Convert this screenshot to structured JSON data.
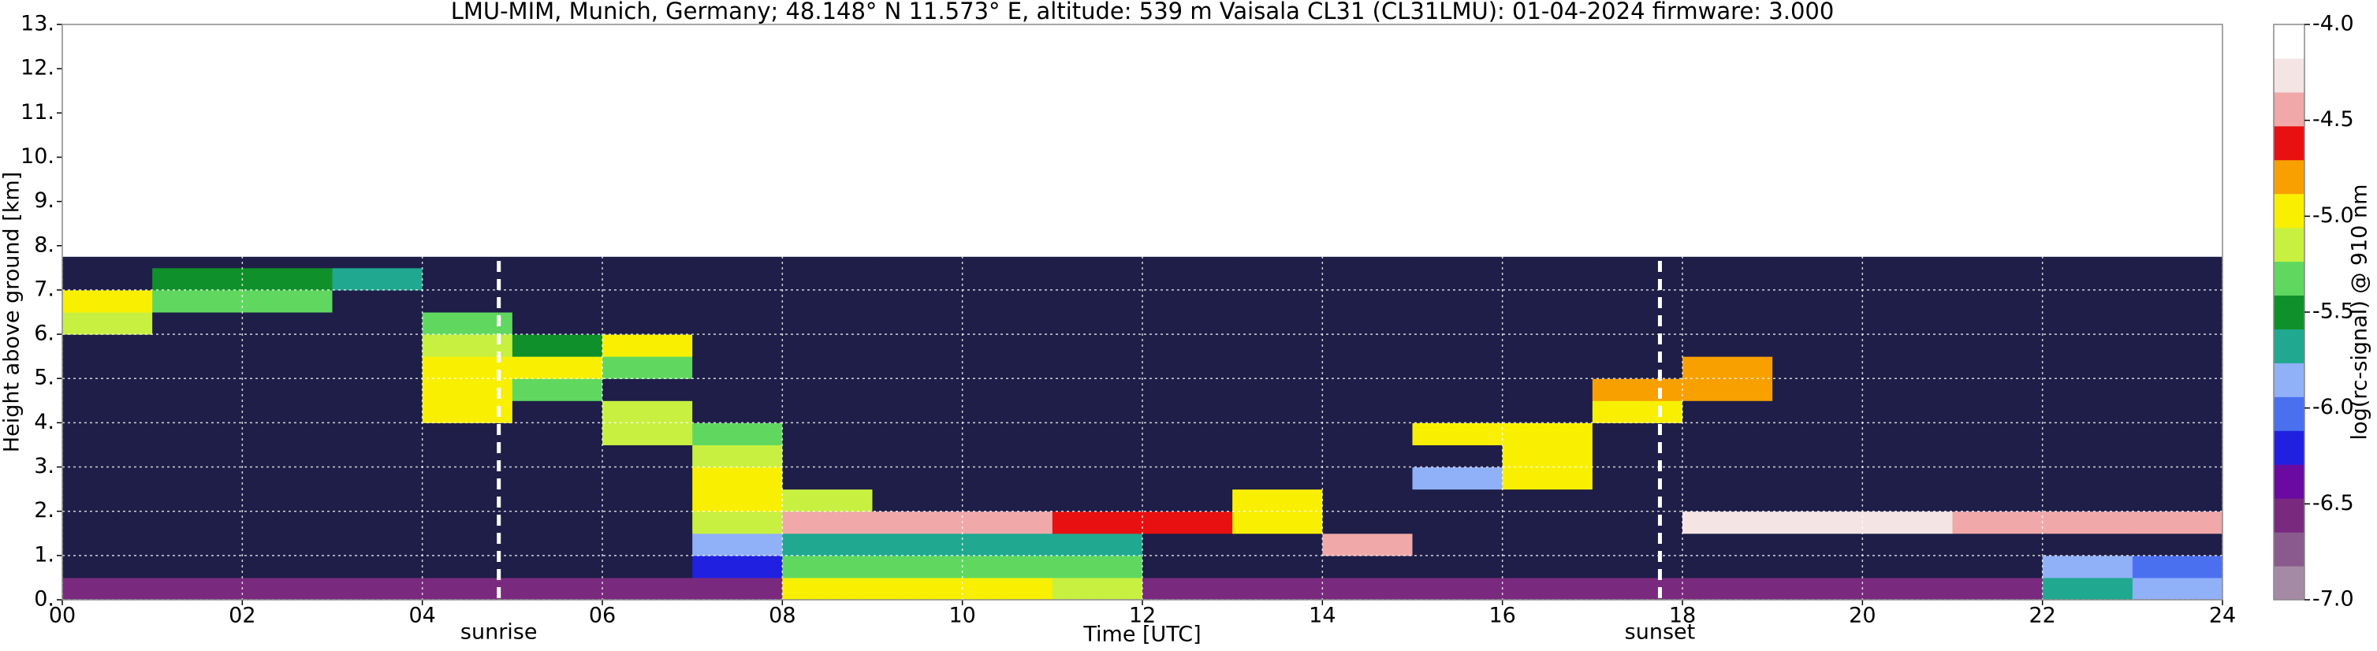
{
  "chart_data": {
    "type": "heatmap",
    "title": "LMU-MIM, Munich, Germany; 48.148° N 11.573° E, altitude: 539 m    Vaisala CL31 (CL31LMU): 01-04-2024    firmware: 3.000",
    "xlabel": "Time [UTC]",
    "ylabel": "Height above ground [km]",
    "colorbar_label": "log(rc-signal) @ 910 nm",
    "xlim": [
      0,
      24
    ],
    "ylim": [
      0,
      13
    ],
    "xticks": [
      {
        "value": 0,
        "label": "00"
      },
      {
        "value": 2,
        "label": "02"
      },
      {
        "value": 4,
        "label": "04"
      },
      {
        "value": 6,
        "label": "06"
      },
      {
        "value": 8,
        "label": "08"
      },
      {
        "value": 10,
        "label": "10"
      },
      {
        "value": 12,
        "label": "12"
      },
      {
        "value": 14,
        "label": "14"
      },
      {
        "value": 16,
        "label": "16"
      },
      {
        "value": 18,
        "label": "18"
      },
      {
        "value": 20,
        "label": "20"
      },
      {
        "value": 22,
        "label": "22"
      },
      {
        "value": 24,
        "label": "24"
      }
    ],
    "yticks": [
      {
        "value": 0,
        "label": "0."
      },
      {
        "value": 1,
        "label": "1."
      },
      {
        "value": 2,
        "label": "2."
      },
      {
        "value": 3,
        "label": "3."
      },
      {
        "value": 4,
        "label": "4."
      },
      {
        "value": 5,
        "label": "5."
      },
      {
        "value": 6,
        "label": "6."
      },
      {
        "value": 7,
        "label": "7."
      },
      {
        "value": 8,
        "label": "8."
      },
      {
        "value": 9,
        "label": "9."
      },
      {
        "value": 10,
        "label": "10."
      },
      {
        "value": 11,
        "label": "11."
      },
      {
        "value": 12,
        "label": "12."
      },
      {
        "value": 13,
        "label": "13."
      }
    ],
    "clim": [
      -7,
      -4
    ],
    "cticks": [
      {
        "value": -4,
        "label": "-4.0"
      },
      -4.5,
      {
        "value": -5,
        "label": "-5.0"
      },
      -5.5,
      {
        "value": -6,
        "label": "-6.0"
      },
      -6.5,
      {
        "value": -7,
        "label": "-7.0"
      }
    ],
    "colormap": [
      "#a58aa5",
      "#8a5a8e",
      "#7a2a7e",
      "#6a0aa0",
      "#2020e0",
      "#4a70f0",
      "#90b0f8",
      "#20a890",
      "#10902a",
      "#60d860",
      "#c8f040",
      "#f8f000",
      "#f8a000",
      "#e81010",
      "#f0a8a8",
      "#f4e4e4",
      "#ffffff"
    ],
    "under_color": "#1e1e48",
    "grid": true,
    "x_edges": [
      0,
      1,
      2,
      3,
      4,
      5,
      6,
      7,
      8,
      9,
      10,
      11,
      12,
      13,
      14,
      15,
      16,
      17,
      18,
      19,
      20,
      21,
      22,
      23,
      24
    ],
    "y_edges": [
      0,
      0.5,
      1,
      1.5,
      2,
      2.5,
      3,
      3.5,
      4,
      4.5,
      5,
      5.5,
      6,
      6.5,
      7,
      7.5,
      7.75
    ],
    "z": [
      [
        -6.6,
        -6.6,
        -6.6,
        -6.6,
        -6.6,
        -6.6,
        -6.6,
        -6.6,
        -5.0,
        -4.9,
        -5.0,
        -5.2,
        -6.6,
        -6.6,
        -6.6,
        -6.6,
        -6.6,
        -6.6,
        -6.6,
        -6.6,
        -6.6,
        -6.5,
        -5.6,
        -5.8
      ],
      [
        -7.3,
        -7.3,
        -7.3,
        -7.3,
        -7.3,
        -7.3,
        -7.3,
        -6.2,
        -5.3,
        -5.3,
        -5.3,
        -5.4,
        -7.3,
        -7.3,
        -7.3,
        -7.3,
        -7.3,
        -7.3,
        -7.3,
        -7.3,
        -7.3,
        -7.3,
        -5.8,
        -6.0
      ],
      [
        -7.4,
        -7.4,
        -7.4,
        -7.4,
        -7.4,
        -7.4,
        -7.4,
        -5.8,
        -5.6,
        -5.6,
        -5.6,
        -5.6,
        -7.4,
        -7.4,
        -4.4,
        -7.4,
        -7.4,
        -7.4,
        -7.4,
        -7.4,
        -7.4,
        -7.4,
        -7.4,
        -7.4
      ],
      [
        -7.4,
        -7.4,
        -7.4,
        -7.4,
        -7.4,
        -7.4,
        -7.4,
        -5.2,
        -4.5,
        -4.5,
        -4.5,
        -4.6,
        -4.6,
        -5.0,
        -7.4,
        -7.4,
        -7.4,
        -7.4,
        -4.3,
        -4.3,
        -4.3,
        -4.4,
        -4.4,
        -4.5
      ],
      [
        -7.4,
        -7.4,
        -7.4,
        -7.4,
        -7.4,
        -7.4,
        -7.4,
        -5.0,
        -5.2,
        -7.4,
        -7.4,
        -7.4,
        -7.4,
        -5.0,
        -7.4,
        -7.4,
        -7.4,
        -7.4,
        -7.4,
        -7.4,
        -7.4,
        -7.4,
        -7.4,
        -7.4
      ],
      [
        -7.4,
        -7.4,
        -7.4,
        -7.4,
        -7.4,
        -7.4,
        -7.4,
        -5.0,
        -7.4,
        -7.4,
        -7.4,
        -7.4,
        -7.4,
        -7.4,
        -7.4,
        -5.8,
        -5.0,
        -7.4,
        -7.4,
        -7.4,
        -7.4,
        -7.4,
        -7.4,
        -7.4
      ],
      [
        -7.4,
        -7.4,
        -7.4,
        -7.4,
        -7.4,
        -7.4,
        -7.4,
        -5.2,
        -7.4,
        -7.4,
        -7.4,
        -7.4,
        -7.4,
        -7.4,
        -7.4,
        -7.4,
        -4.9,
        -7.4,
        -7.4,
        -7.4,
        -7.4,
        -7.4,
        -7.4,
        -7.4
      ],
      [
        -7.4,
        -7.4,
        -7.4,
        -7.4,
        -7.4,
        -7.4,
        -5.2,
        -5.4,
        -7.4,
        -7.4,
        -7.4,
        -7.4,
        -7.4,
        -7.4,
        -7.4,
        -5.0,
        -5.0,
        -7.4,
        -7.4,
        -7.4,
        -7.4,
        -7.4,
        -7.4,
        -7.4
      ],
      [
        -7.4,
        -7.4,
        -7.4,
        -7.4,
        -5.0,
        -7.4,
        -5.2,
        -7.4,
        -7.4,
        -7.4,
        -7.4,
        -7.4,
        -7.4,
        -7.4,
        -7.4,
        -7.4,
        -7.4,
        -5.0,
        -7.4,
        -7.4,
        -7.4,
        -7.4,
        -7.4,
        -7.4
      ],
      [
        -7.4,
        -7.4,
        -7.4,
        -7.4,
        -5.0,
        -5.3,
        -7.4,
        -7.4,
        -7.4,
        -7.4,
        -7.4,
        -7.4,
        -7.4,
        -7.4,
        -7.4,
        -7.4,
        -7.4,
        -4.8,
        -4.8,
        -7.4,
        -7.4,
        -7.4,
        -7.4,
        -7.4
      ],
      [
        -7.4,
        -7.4,
        -7.4,
        -7.4,
        -5.0,
        -5.0,
        -5.3,
        -7.4,
        -7.4,
        -7.4,
        -7.4,
        -7.4,
        -7.4,
        -7.4,
        -7.4,
        -7.4,
        -7.4,
        -7.4,
        -4.8,
        -7.4,
        -7.4,
        -7.4,
        -7.4,
        -7.4
      ],
      [
        -7.4,
        -7.4,
        -7.4,
        -7.4,
        -5.2,
        -5.5,
        -5.0,
        -7.4,
        -7.4,
        -7.4,
        -7.4,
        -7.4,
        -7.4,
        -7.4,
        -7.4,
        -7.4,
        -7.4,
        -7.4,
        -7.4,
        -7.4,
        -7.4,
        -7.4,
        -7.4,
        -7.4
      ],
      [
        -5.2,
        -7.4,
        -7.4,
        -7.4,
        -5.3,
        -7.4,
        -7.4,
        -7.4,
        -7.4,
        -7.4,
        -7.4,
        -7.4,
        -7.4,
        -7.4,
        -7.4,
        -7.4,
        -7.4,
        -7.4,
        -7.4,
        -7.4,
        -7.4,
        -7.4,
        -7.4,
        -7.4
      ],
      [
        -5.0,
        -5.3,
        -5.3,
        -7.4,
        -7.4,
        -7.4,
        -7.4,
        -7.4,
        -7.4,
        -7.4,
        -7.4,
        -7.4,
        -7.4,
        -7.4,
        -7.4,
        -7.4,
        -7.4,
        -7.4,
        -7.4,
        -7.4,
        -7.4,
        -7.4,
        -7.4,
        -7.4
      ],
      [
        -7.3,
        -5.5,
        -5.5,
        -5.6,
        -7.3,
        -7.3,
        -7.3,
        -7.3,
        -7.3,
        -7.3,
        -7.3,
        -7.3,
        -7.3,
        -7.3,
        -7.3,
        -7.3,
        -7.3,
        -7.3,
        -7.3,
        -7.3,
        -7.3,
        -7.3,
        -7.3,
        -7.3
      ],
      [
        -7.1,
        -7.1,
        -7.1,
        -7.1,
        -7.1,
        -7.1,
        -7.1,
        -7.1,
        -7.1,
        -7.1,
        -7.1,
        -7.1,
        -7.1,
        -7.1,
        -7.1,
        -7.1,
        -7.1,
        -7.1,
        -7.1,
        -7.1,
        -7.1,
        -7.1,
        -7.1,
        -7.1
      ]
    ],
    "annotations": [
      {
        "label": "sunrise",
        "x": 4.85
      },
      {
        "label": "sunset",
        "x": 17.75
      }
    ]
  }
}
